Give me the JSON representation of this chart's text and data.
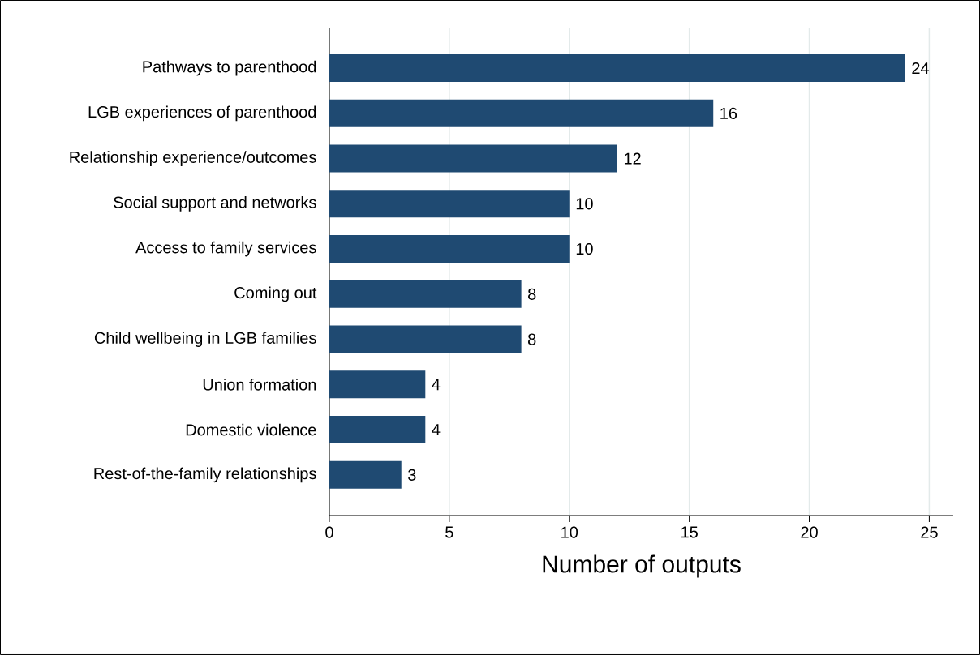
{
  "chart_data": {
    "type": "bar",
    "orientation": "horizontal",
    "xlabel": "Number of outputs",
    "categories": [
      "Pathways to parenthood",
      "LGB experiences of parenthood",
      "Relationship experience/outcomes",
      "Social support and networks",
      "Access to family services",
      "Coming out",
      "Child wellbeing in LGB families",
      "Union formation",
      "Domestic violence",
      "Rest-of-the-family relationships"
    ],
    "values": [
      24,
      16,
      12,
      10,
      10,
      8,
      8,
      4,
      4,
      3
    ],
    "color": "#1f4a72",
    "xlim": [
      0,
      26
    ],
    "xticks": [
      0,
      5,
      10,
      15,
      20,
      25
    ],
    "grid": "x",
    "data_labels": true
  }
}
